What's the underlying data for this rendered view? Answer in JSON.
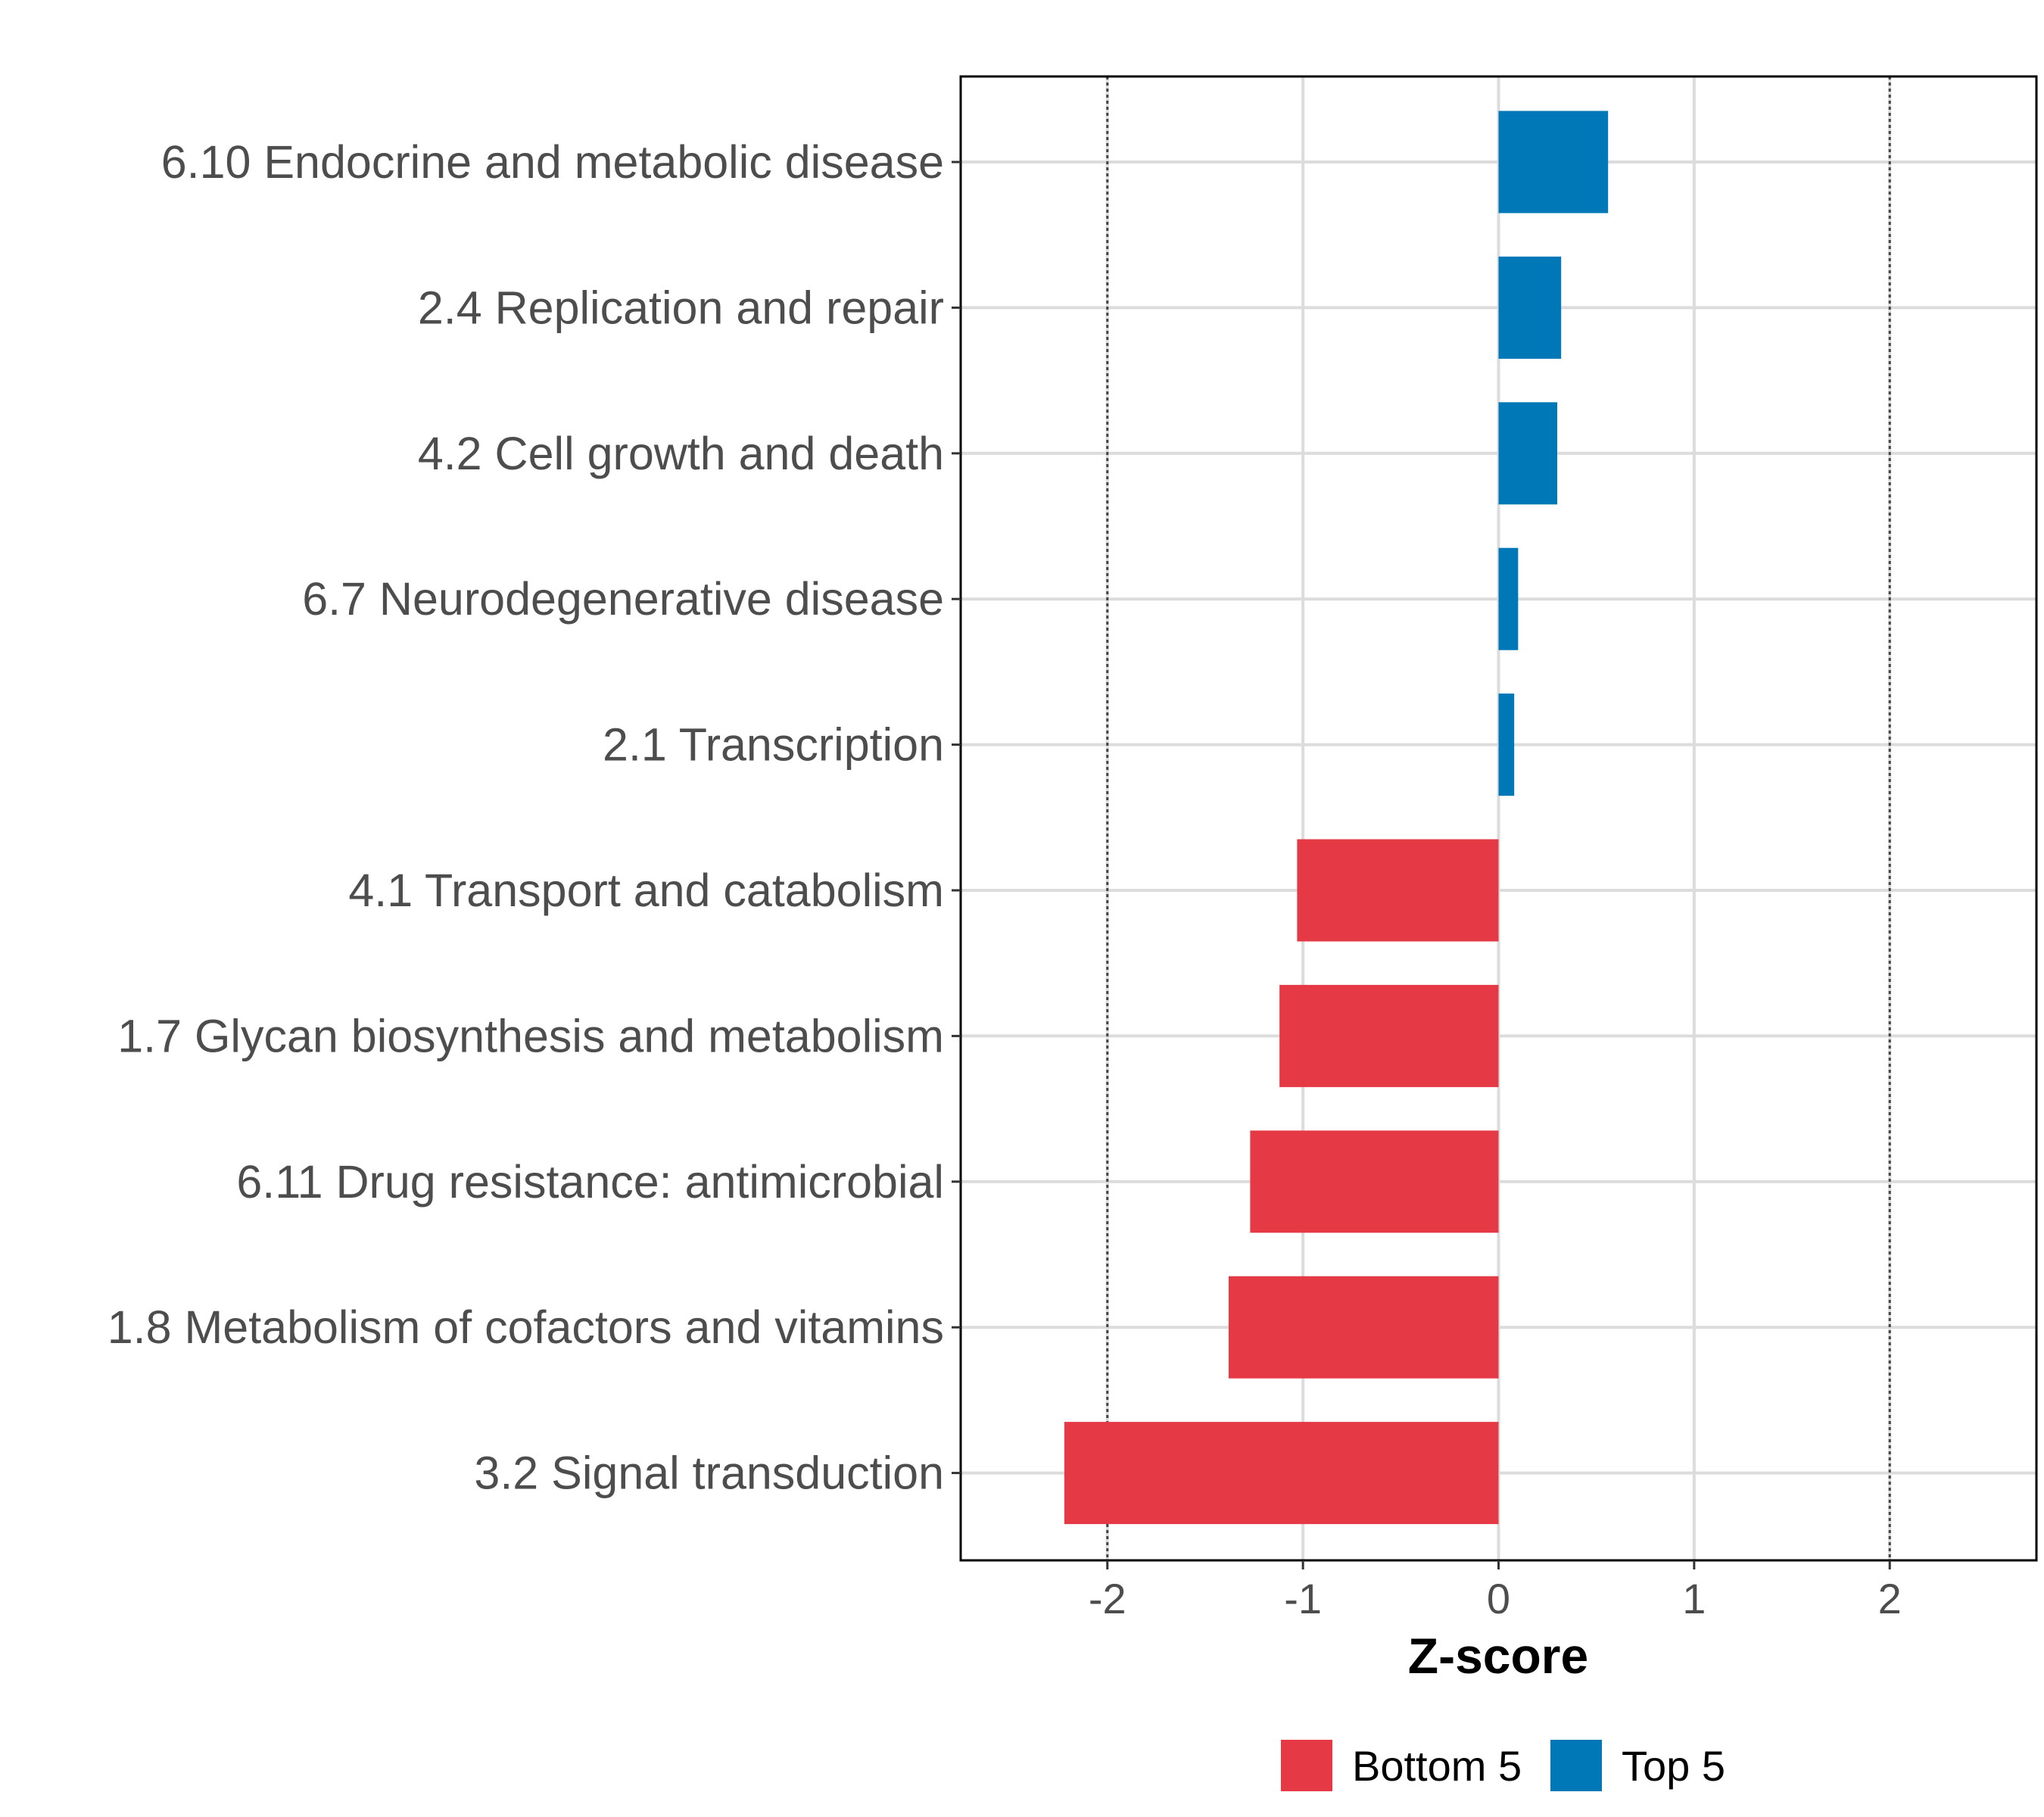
{
  "chart_data": {
    "type": "bar",
    "orientation": "horizontal",
    "title": "",
    "xlabel": "Z-score",
    "ylabel": "",
    "xlim": [
      -2.75,
      2.75
    ],
    "x_ticks": [
      -2,
      -1,
      0,
      1,
      2
    ],
    "x_tick_labels": [
      "-2",
      "-1",
      "0",
      "1",
      "2"
    ],
    "reference_lines": [
      -2,
      2
    ],
    "grid": true,
    "categories": [
      "6.10 Endocrine and metabolic disease",
      "2.4 Replication and repair",
      "4.2 Cell growth and death",
      "6.7 Neurodegenerative disease",
      "2.1 Transcription",
      "4.1 Transport and catabolism",
      "1.7 Glycan biosynthesis and metabolism",
      "6.11 Drug resistance: antimicrobial",
      "1.8 Metabolism of cofactors and vitamins",
      "3.2 Signal transduction"
    ],
    "values": [
      0.56,
      0.32,
      0.3,
      0.1,
      0.08,
      -1.03,
      -1.12,
      -1.27,
      -1.38,
      -2.22
    ],
    "groups": [
      "Top 5",
      "Top 5",
      "Top 5",
      "Top 5",
      "Top 5",
      "Bottom 5",
      "Bottom 5",
      "Bottom 5",
      "Bottom 5",
      "Bottom 5"
    ],
    "legend": {
      "position": "bottom",
      "entries": [
        {
          "name": "Bottom 5",
          "color": "#E63946"
        },
        {
          "name": "Top 5",
          "color": "#0077B6"
        }
      ]
    }
  }
}
